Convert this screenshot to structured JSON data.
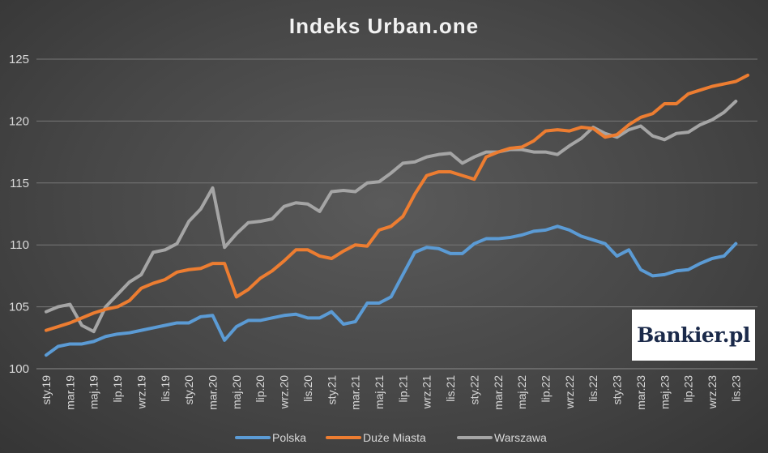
{
  "chart_data": {
    "type": "line",
    "title": "Indeks Urban.one",
    "xlabel": "",
    "ylabel": "",
    "ylim": [
      100,
      125
    ],
    "yticks": [
      100,
      105,
      110,
      115,
      120,
      125
    ],
    "grid": true,
    "legend_position": "bottom",
    "x_tick_labels": [
      "sty.19",
      "mar.19",
      "maj.19",
      "lip.19",
      "wrz.19",
      "lis.19",
      "sty.20",
      "mar.20",
      "maj.20",
      "lip.20",
      "wrz.20",
      "lis.20",
      "sty.21",
      "mar.21",
      "maj.21",
      "lip.21",
      "wrz.21",
      "lis.21",
      "sty.22",
      "mar.22",
      "maj.22",
      "lip.22",
      "wrz.22",
      "lis.22",
      "sty.23",
      "mar.23",
      "maj.23",
      "lip.23",
      "wrz.23",
      "lis.23"
    ],
    "series": [
      {
        "name": "Polska",
        "color": "#5b9bd5",
        "values": [
          101.1,
          101.8,
          102.0,
          102.0,
          102.2,
          102.6,
          102.8,
          102.9,
          103.1,
          103.3,
          103.5,
          103.7,
          103.7,
          104.2,
          104.3,
          102.3,
          103.4,
          103.9,
          103.9,
          104.1,
          104.3,
          104.4,
          104.1,
          104.1,
          104.6,
          103.6,
          103.8,
          105.3,
          105.3,
          105.8,
          107.6,
          109.4,
          109.8,
          109.7,
          109.3,
          109.3,
          110.1,
          110.5,
          110.5,
          110.6,
          110.8,
          111.1,
          111.2,
          111.5,
          111.2,
          110.7,
          110.4,
          110.1,
          109.1,
          109.6,
          108.0,
          107.5,
          107.6,
          107.9,
          108.0,
          108.5,
          108.9,
          109.1,
          110.1
        ]
      },
      {
        "name": "Duże Miasta",
        "color": "#ed7d31",
        "values": [
          103.1,
          103.4,
          103.7,
          104.1,
          104.5,
          104.8,
          105.0,
          105.5,
          106.5,
          106.9,
          107.2,
          107.8,
          108.0,
          108.1,
          108.5,
          108.5,
          105.8,
          106.4,
          107.3,
          107.9,
          108.7,
          109.6,
          109.6,
          109.1,
          108.9,
          109.5,
          110.0,
          109.9,
          111.2,
          111.5,
          112.3,
          114.1,
          115.6,
          115.9,
          115.9,
          115.6,
          115.3,
          117.1,
          117.5,
          117.8,
          117.9,
          118.4,
          119.2,
          119.3,
          119.2,
          119.5,
          119.4,
          118.7,
          118.9,
          119.7,
          120.3,
          120.6,
          121.4,
          121.4,
          122.2,
          122.5,
          122.8,
          123.0,
          123.2,
          123.7
        ]
      },
      {
        "name": "Warszawa",
        "color": "#a5a5a5",
        "values": [
          104.6,
          105.0,
          105.2,
          103.5,
          103.0,
          105.0,
          106.0,
          107.0,
          107.6,
          109.4,
          109.6,
          110.1,
          111.9,
          112.9,
          114.6,
          109.8,
          110.9,
          111.8,
          111.9,
          112.1,
          113.1,
          113.4,
          113.3,
          112.7,
          114.3,
          114.4,
          114.3,
          115.0,
          115.1,
          115.8,
          116.6,
          116.7,
          117.1,
          117.3,
          117.4,
          116.6,
          117.1,
          117.5,
          117.5,
          117.7,
          117.7,
          117.5,
          117.5,
          117.3,
          118.0,
          118.6,
          119.5,
          119.0,
          118.7,
          119.3,
          119.6,
          118.8,
          118.5,
          119.0,
          119.1,
          119.7,
          120.1,
          120.7,
          121.6
        ]
      }
    ]
  },
  "watermark": {
    "logo_text": "Bankier.pl"
  }
}
